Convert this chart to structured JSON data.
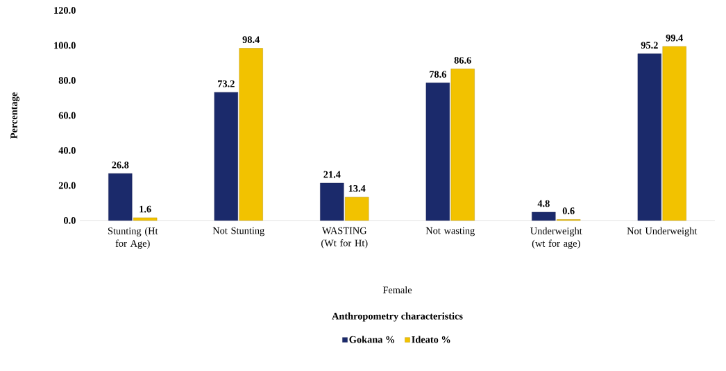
{
  "chart_data": {
    "type": "bar",
    "ylabel": "Percentage",
    "categories": [
      "Stunting (Ht for Age)",
      "Not Stunting",
      "WASTING (Wt for Ht)",
      "Not wasting",
      "Underweight (wt for age)",
      "Not Underweight"
    ],
    "series": [
      {
        "name": "Gokana %",
        "color": "#1b2a6b",
        "values": [
          26.8,
          73.2,
          21.4,
          78.6,
          4.8,
          95.2
        ]
      },
      {
        "name": "Ideato %",
        "color": "#f2c200",
        "values": [
          1.6,
          98.4,
          13.4,
          86.6,
          0.6,
          99.4
        ]
      }
    ],
    "ylim": [
      0,
      120
    ],
    "yticks": [
      {
        "value": 0,
        "label": "0.0"
      },
      {
        "value": 20,
        "label": "20.0"
      },
      {
        "value": 40,
        "label": "40.0"
      },
      {
        "value": 60,
        "label": "60.0"
      },
      {
        "value": 80,
        "label": "80.0"
      },
      {
        "value": 100,
        "label": "100.0"
      },
      {
        "value": 120,
        "label": "120.0"
      }
    ],
    "data_labels": true,
    "legend": "bottom",
    "grid": false,
    "annotations": [
      "Female",
      "Anthropometry characteristics"
    ]
  }
}
